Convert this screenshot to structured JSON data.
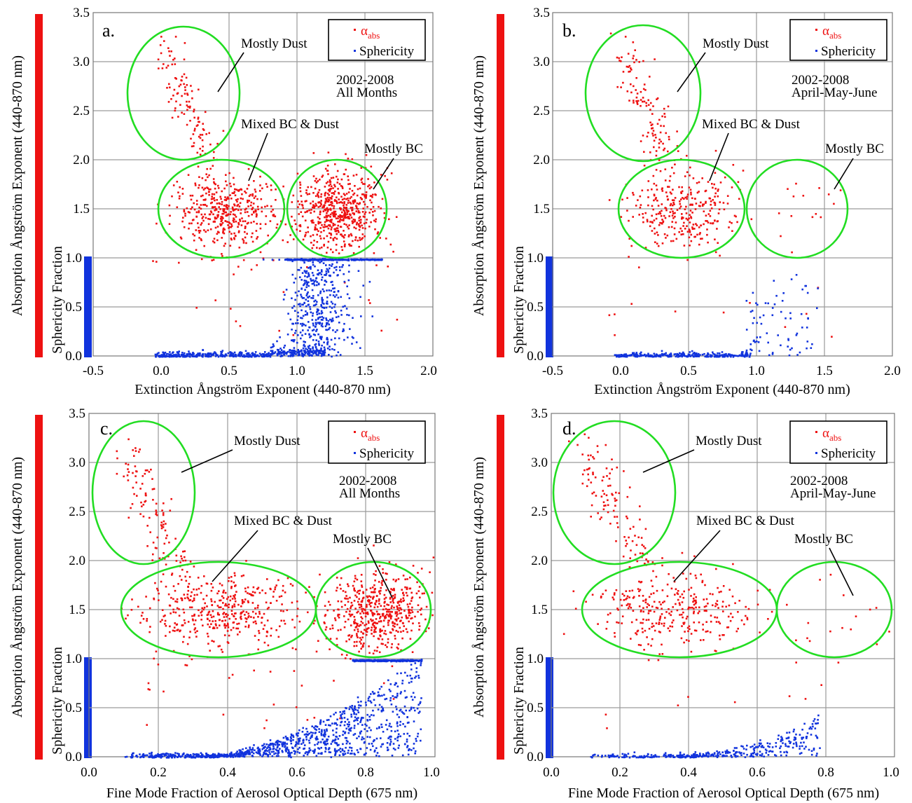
{
  "colors": {
    "absorption": "#ee1111",
    "sphericity": "#1133dd",
    "ellipse": "#22dd22",
    "grid": "#9a9a9a"
  },
  "legend": {
    "absorption_symbol": "α",
    "absorption_subscript": "abs",
    "sphericity_label": "Sphericity"
  },
  "labels": {
    "left_axis_abs": "Absorption Ångström  Exponent (440-870 nm)",
    "left_axis_sph": "Sphericity Fraction",
    "x_axis_top": "Extinction Ångström Exponent (440-870 nm)",
    "x_axis_bottom": "Fine Mode Fraction of Aerosol Optical Depth (675 nm)",
    "mostly_dust": "Mostly Dust",
    "mixed": "Mixed BC & Dust",
    "mostly_bc": "Mostly BC"
  },
  "chart_data": [
    {
      "panel": "a.",
      "type": "scatter",
      "period": "2002-2008",
      "months": "All Months",
      "xlim": [
        -0.5,
        2.0
      ],
      "xticks": [
        "-0.5",
        "0.0",
        "0.5",
        "1.0",
        "1.5",
        "2.0"
      ],
      "ylim_abs": [
        0.0,
        3.5
      ],
      "yticks_abs": [
        "0.0",
        "0.5",
        "1.0",
        "1.5",
        "2.0",
        "2.5",
        "3.0",
        "3.5"
      ],
      "ylim_sph": [
        0.0,
        1.0
      ],
      "yticks_sph": [
        "0.0",
        "0.5",
        "1.0"
      ],
      "clusters": [
        {
          "name": "Mostly Dust",
          "center": [
            0.18,
            2.68
          ],
          "radius": [
            0.3,
            0.67
          ]
        },
        {
          "name": "Mixed BC & Dust",
          "center": [
            0.47,
            1.5
          ],
          "radius": [
            0.46,
            0.5
          ]
        },
        {
          "name": "Mostly BC",
          "center": [
            1.3,
            1.5
          ],
          "radius": [
            0.36,
            0.5
          ]
        }
      ]
    },
    {
      "panel": "b.",
      "type": "scatter",
      "period": "2002-2008",
      "months": "April-May-June",
      "xlim": [
        -0.5,
        2.0
      ],
      "xticks": [
        "-0.5",
        "0.0",
        "0.5",
        "1.0",
        "1.5",
        "2.0"
      ],
      "ylim_abs": [
        0.0,
        3.5
      ],
      "yticks_abs": [
        "0.0",
        "0.5",
        "1.0",
        "1.5",
        "2.0",
        "2.5",
        "3.0",
        "3.5"
      ],
      "ylim_sph": [
        0.0,
        1.0
      ],
      "yticks_sph": [
        "0.0",
        "0.5",
        "1.0"
      ],
      "clusters": [
        {
          "name": "Mostly Dust",
          "center": [
            0.18,
            2.68
          ],
          "radius": [
            0.3,
            0.67
          ]
        },
        {
          "name": "Mixed BC & Dust",
          "center": [
            0.45,
            1.5
          ],
          "radius": [
            0.46,
            0.5
          ]
        },
        {
          "name": "Mostly BC",
          "center": [
            1.3,
            1.5
          ],
          "radius": [
            0.37,
            0.5
          ]
        }
      ]
    },
    {
      "panel": "c.",
      "type": "scatter",
      "period": "2002-2008",
      "months": "All Months",
      "xlim": [
        0.0,
        1.0
      ],
      "xticks": [
        "0.0",
        "0.2",
        "0.4",
        "0.6",
        "0.8",
        "1.0"
      ],
      "ylim_abs": [
        0.0,
        3.5
      ],
      "yticks_abs": [
        "0.0",
        "0.5",
        "1.0",
        "1.5",
        "2.0",
        "2.5",
        "3.0",
        "3.5"
      ],
      "ylim_sph": [
        0.0,
        1.0
      ],
      "yticks_sph": [
        "0.0",
        "0.5",
        "1.0"
      ],
      "clusters": [
        {
          "name": "Mostly Dust",
          "center": [
            0.18,
            2.7
          ],
          "radius": [
            0.15,
            0.73
          ]
        },
        {
          "name": "Mixed BC & Dust",
          "center": [
            0.38,
            1.5
          ],
          "radius": [
            0.28,
            0.49
          ]
        },
        {
          "name": "Mostly BC",
          "center": [
            0.83,
            1.5
          ],
          "radius": [
            0.165,
            0.49
          ]
        }
      ]
    },
    {
      "panel": "d.",
      "type": "scatter",
      "period": "2002-2008",
      "months": "April-May-June",
      "xlim": [
        0.0,
        1.0
      ],
      "xticks": [
        "0.0",
        "0.2",
        "0.4",
        "0.6",
        "0.8",
        "1.0"
      ],
      "ylim_abs": [
        0.0,
        3.5
      ],
      "yticks_abs": [
        "0.0",
        "0.5",
        "1.0",
        "1.5",
        "2.0",
        "2.5",
        "3.0",
        "3.5"
      ],
      "ylim_sph": [
        0.0,
        1.0
      ],
      "yticks_sph": [
        "0.0",
        "0.5",
        "1.0"
      ],
      "clusters": [
        {
          "name": "Mostly Dust",
          "center": [
            0.18,
            2.7
          ],
          "radius": [
            0.15,
            0.73
          ]
        },
        {
          "name": "Mixed BC & Dust",
          "center": [
            0.36,
            1.5
          ],
          "radius": [
            0.28,
            0.49
          ]
        },
        {
          "name": "Mostly BC",
          "center": [
            0.83,
            1.5
          ],
          "radius": [
            0.165,
            0.49
          ]
        }
      ]
    }
  ]
}
